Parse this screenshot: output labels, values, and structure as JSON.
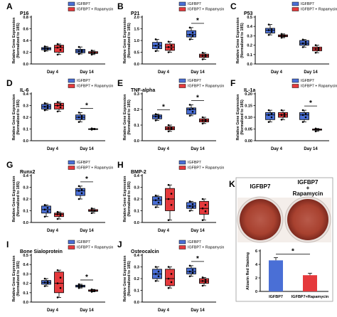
{
  "figure": {
    "y_axis_label_1": "Relative Gene Expression",
    "y_axis_label_2": "(Normalized to 18S)",
    "x_categories": [
      "Day 4",
      "Day 14"
    ],
    "legend": [
      "IGFBP7",
      "IGFBP7 + Rapamycin"
    ],
    "colors": {
      "igfbp7": "#4a6fd6",
      "rapamycin": "#e5393c"
    },
    "significance_marker": "*"
  },
  "chart_data": [
    {
      "letter": "A",
      "title": "P16",
      "type": "box",
      "ylim": [
        0,
        0.8
      ],
      "yticks": [
        0,
        0.2,
        0.4,
        0.6,
        0.8
      ],
      "tick_decimals": 1,
      "series": [
        {
          "name": "IGFBP7",
          "boxes": [
            [
              0.22,
              0.24,
              0.26,
              0.28,
              0.3
            ],
            [
              0.17,
              0.19,
              0.22,
              0.25,
              0.29
            ]
          ]
        },
        {
          "name": "IGFBP7 + Rapamycin",
          "boxes": [
            [
              0.16,
              0.2,
              0.28,
              0.32,
              0.34
            ],
            [
              0.16,
              0.18,
              0.19,
              0.21,
              0.23
            ]
          ]
        }
      ],
      "significance": []
    },
    {
      "letter": "B",
      "title": "P21",
      "type": "box",
      "ylim": [
        0,
        2.0
      ],
      "yticks": [
        0,
        0.5,
        1.0,
        1.5,
        2.0
      ],
      "tick_decimals": 1,
      "series": [
        {
          "name": "IGFBP7",
          "boxes": [
            [
              0.55,
              0.65,
              0.78,
              0.92,
              1.05
            ],
            [
              1.05,
              1.15,
              1.25,
              1.42,
              1.55
            ]
          ]
        },
        {
          "name": "IGFBP7 + Rapamycin",
          "boxes": [
            [
              0.5,
              0.58,
              0.72,
              0.85,
              0.95
            ],
            [
              0.2,
              0.28,
              0.35,
              0.42,
              0.48
            ]
          ]
        }
      ],
      "significance": [
        1
      ]
    },
    {
      "letter": "C",
      "title": "P53",
      "type": "box",
      "ylim": [
        0,
        0.5
      ],
      "yticks": [
        0,
        0.1,
        0.2,
        0.3,
        0.4,
        0.5
      ],
      "tick_decimals": 1,
      "series": [
        {
          "name": "IGFBP7",
          "boxes": [
            [
              0.31,
              0.33,
              0.36,
              0.38,
              0.42
            ],
            [
              0.18,
              0.2,
              0.22,
              0.25,
              0.26
            ]
          ]
        },
        {
          "name": "IGFBP7 + Rapamycin",
          "boxes": [
            [
              0.28,
              0.29,
              0.3,
              0.31,
              0.32
            ],
            [
              0.12,
              0.14,
              0.16,
              0.18,
              0.2
            ]
          ]
        }
      ],
      "significance": []
    },
    {
      "letter": "D",
      "title": "IL-6",
      "type": "box",
      "ylim": [
        0,
        0.4
      ],
      "yticks": [
        0,
        0.1,
        0.2,
        0.3,
        0.4
      ],
      "tick_decimals": 1,
      "series": [
        {
          "name": "IGFBP7",
          "boxes": [
            [
              0.26,
              0.27,
              0.29,
              0.31,
              0.32
            ],
            [
              0.16,
              0.18,
              0.2,
              0.22,
              0.24
            ]
          ]
        },
        {
          "name": "IGFBP7 + Rapamycin",
          "boxes": [
            [
              0.25,
              0.27,
              0.3,
              0.32,
              0.33
            ],
            [
              0.095,
              0.097,
              0.1,
              0.102,
              0.105
            ]
          ]
        }
      ],
      "significance": [
        1
      ]
    },
    {
      "letter": "E",
      "title": "TNF-alpha",
      "type": "box",
      "ylim": [
        0,
        0.3
      ],
      "yticks": [
        0,
        0.1,
        0.2,
        0.3
      ],
      "tick_decimals": 1,
      "series": [
        {
          "name": "IGFBP7",
          "boxes": [
            [
              0.13,
              0.14,
              0.155,
              0.165,
              0.17
            ],
            [
              0.16,
              0.17,
              0.2,
              0.21,
              0.23
            ]
          ]
        },
        {
          "name": "IGFBP7 + Rapamycin",
          "boxes": [
            [
              0.06,
              0.07,
              0.08,
              0.09,
              0.1
            ],
            [
              0.11,
              0.12,
              0.13,
              0.14,
              0.15
            ]
          ]
        }
      ],
      "significance": [
        0,
        1
      ]
    },
    {
      "letter": "F",
      "title": "IL-1a",
      "type": "box",
      "ylim": [
        0,
        0.2
      ],
      "yticks": [
        0,
        0.05,
        0.1,
        0.15,
        0.2
      ],
      "tick_decimals": 2,
      "series": [
        {
          "name": "IGFBP7",
          "boxes": [
            [
              0.08,
              0.09,
              0.11,
              0.12,
              0.13
            ],
            [
              0.08,
              0.09,
              0.11,
              0.12,
              0.13
            ]
          ]
        },
        {
          "name": "IGFBP7 + Rapamycin",
          "boxes": [
            [
              0.09,
              0.1,
              0.11,
              0.12,
              0.13
            ],
            [
              0.04,
              0.045,
              0.048,
              0.05,
              0.052
            ]
          ]
        }
      ],
      "significance": [
        1
      ]
    },
    {
      "letter": "G",
      "title": "Runx2",
      "type": "box",
      "ylim": [
        0,
        0.4
      ],
      "yticks": [
        0,
        0.1,
        0.2,
        0.3,
        0.4
      ],
      "tick_decimals": 1,
      "series": [
        {
          "name": "IGFBP7",
          "boxes": [
            [
              0.05,
              0.08,
              0.11,
              0.14,
              0.15
            ],
            [
              0.2,
              0.23,
              0.27,
              0.29,
              0.31
            ]
          ]
        },
        {
          "name": "IGFBP7 + Rapamycin",
          "boxes": [
            [
              0.03,
              0.05,
              0.07,
              0.08,
              0.09
            ],
            [
              0.08,
              0.095,
              0.1,
              0.11,
              0.12
            ]
          ]
        }
      ],
      "significance": [
        1
      ]
    },
    {
      "letter": "H",
      "title": "BMP-2",
      "type": "box",
      "ylim": [
        0,
        0.4
      ],
      "yticks": [
        0,
        0.1,
        0.2,
        0.3,
        0.4
      ],
      "tick_decimals": 1,
      "series": [
        {
          "name": "IGFBP7",
          "boxes": [
            [
              0.13,
              0.15,
              0.19,
              0.22,
              0.23
            ],
            [
              0.1,
              0.12,
              0.14,
              0.17,
              0.18
            ]
          ]
        },
        {
          "name": "IGFBP7 + Rapamycin",
          "boxes": [
            [
              0.02,
              0.1,
              0.2,
              0.29,
              0.32
            ],
            [
              0.02,
              0.07,
              0.12,
              0.18,
              0.2
            ]
          ]
        }
      ],
      "significance": []
    },
    {
      "letter": "I",
      "title": "Bone Sialoprotein",
      "type": "box",
      "ylim": [
        0,
        0.5
      ],
      "yticks": [
        0,
        0.1,
        0.2,
        0.3,
        0.4,
        0.5
      ],
      "tick_decimals": 1,
      "series": [
        {
          "name": "IGFBP7",
          "boxes": [
            [
              0.17,
              0.19,
              0.21,
              0.23,
              0.25
            ],
            [
              0.15,
              0.16,
              0.17,
              0.18,
              0.19
            ]
          ]
        },
        {
          "name": "IGFBP7 + Rapamycin",
          "boxes": [
            [
              0.05,
              0.1,
              0.2,
              0.32,
              0.34
            ],
            [
              0.11,
              0.115,
              0.12,
              0.13,
              0.135
            ]
          ]
        }
      ],
      "significance": [
        1
      ]
    },
    {
      "letter": "J",
      "title": "Osteocalcin",
      "type": "box",
      "ylim": [
        0,
        0.4
      ],
      "yticks": [
        0,
        0.1,
        0.2,
        0.3,
        0.4
      ],
      "tick_decimals": 1,
      "series": [
        {
          "name": "IGFBP7",
          "boxes": [
            [
              0.18,
              0.2,
              0.24,
              0.28,
              0.3
            ],
            [
              0.22,
              0.24,
              0.26,
              0.29,
              0.31
            ]
          ]
        },
        {
          "name": "IGFBP7 + Rapamycin",
          "boxes": [
            [
              0.12,
              0.14,
              0.2,
              0.28,
              0.3
            ],
            [
              0.14,
              0.16,
              0.18,
              0.2,
              0.21
            ]
          ]
        }
      ],
      "significance": [
        1
      ]
    },
    {
      "letter": "K",
      "type": "bar",
      "image_labels": [
        "IGFBP7",
        "IGFBP7\n+\nRapamycin"
      ],
      "ylabel": "Alizarin Red Staining",
      "ylim": [
        0,
        6
      ],
      "yticks": [
        0,
        2,
        4,
        6
      ],
      "tick_decimals": 0,
      "categories": [
        "IGFBP7",
        "IGFBP7+Rapamycin"
      ],
      "values": [
        4.6,
        2.4
      ],
      "errors": [
        0.4,
        0.3
      ],
      "significance": true
    }
  ]
}
